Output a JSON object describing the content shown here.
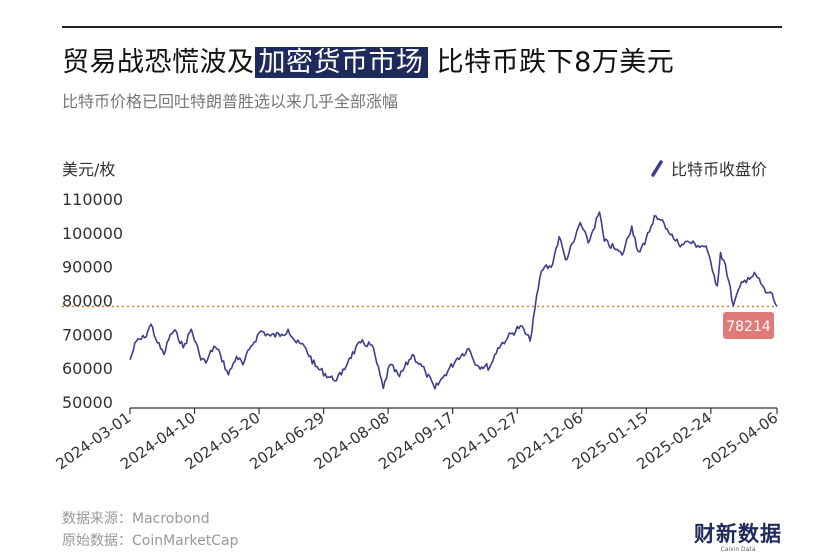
{
  "header": {
    "title_pre": "贸易战恐慌波及",
    "title_highlight": "加密货币市场",
    "title_post": " 比特币跌下8万美元",
    "subtitle": "比特币价格已回吐特朗普胜选以来几乎全部涨幅"
  },
  "footer": {
    "source": "数据来源：Macrobond",
    "raw_source": "原始数据：CoinMarketCap"
  },
  "logo": {
    "cn": "财新数据",
    "en": "Caixin Data"
  },
  "colors": {
    "line": "#3d3e8c",
    "reference": "#e0782a",
    "callout": "#e07a78",
    "axis": "#333333"
  },
  "chart_data": {
    "type": "line",
    "ylabel": "美元/枚",
    "ylim": [
      50000,
      115000
    ],
    "yticks": [
      50000,
      60000,
      70000,
      80000,
      90000,
      100000,
      110000
    ],
    "xlim": [
      "2024-03-01",
      "2025-04-06"
    ],
    "xticks": [
      "2024-03-01",
      "2024-04-10",
      "2024-05-20",
      "2024-06-29",
      "2024-08-08",
      "2024-09-17",
      "2024-10-27",
      "2024-12-06",
      "2025-01-15",
      "2025-02-24",
      "2025-04-06"
    ],
    "grid": false,
    "legend_position": "top-right",
    "reference_line": {
      "value": 78214,
      "label": "78214"
    },
    "series": [
      {
        "name": "比特币收盘价",
        "points": [
          [
            "2024-03-01",
            62500
          ],
          [
            "2024-03-05",
            68000
          ],
          [
            "2024-03-10",
            69000
          ],
          [
            "2024-03-14",
            73000
          ],
          [
            "2024-03-18",
            67500
          ],
          [
            "2024-03-22",
            64000
          ],
          [
            "2024-03-26",
            70000
          ],
          [
            "2024-03-30",
            70500
          ],
          [
            "2024-04-03",
            66000
          ],
          [
            "2024-04-08",
            71500
          ],
          [
            "2024-04-13",
            64000
          ],
          [
            "2024-04-17",
            61500
          ],
          [
            "2024-04-22",
            66500
          ],
          [
            "2024-04-26",
            64000
          ],
          [
            "2024-05-01",
            58000
          ],
          [
            "2024-05-06",
            63500
          ],
          [
            "2024-05-10",
            61000
          ],
          [
            "2024-05-15",
            66500
          ],
          [
            "2024-05-21",
            71000
          ],
          [
            "2024-05-27",
            69500
          ],
          [
            "2024-06-03",
            70000
          ],
          [
            "2024-06-07",
            71500
          ],
          [
            "2024-06-12",
            67500
          ],
          [
            "2024-06-17",
            66500
          ],
          [
            "2024-06-24",
            60500
          ],
          [
            "2024-07-05",
            56500
          ],
          [
            "2024-07-10",
            58000
          ],
          [
            "2024-07-15",
            63000
          ],
          [
            "2024-07-22",
            67500
          ],
          [
            "2024-07-29",
            66800
          ],
          [
            "2024-08-05",
            54000
          ],
          [
            "2024-08-09",
            61000
          ],
          [
            "2024-08-15",
            57500
          ],
          [
            "2024-08-23",
            64000
          ],
          [
            "2024-08-31",
            59000
          ],
          [
            "2024-09-06",
            53900
          ],
          [
            "2024-09-12",
            58000
          ],
          [
            "2024-09-20",
            63000
          ],
          [
            "2024-09-27",
            65800
          ],
          [
            "2024-10-02",
            60800
          ],
          [
            "2024-10-10",
            60300
          ],
          [
            "2024-10-15",
            66000
          ],
          [
            "2024-10-21",
            69000
          ],
          [
            "2024-10-29",
            72500
          ],
          [
            "2024-11-04",
            68000
          ],
          [
            "2024-11-06",
            75000
          ],
          [
            "2024-11-11",
            88700
          ],
          [
            "2024-11-13",
            90000
          ],
          [
            "2024-11-17",
            89800
          ],
          [
            "2024-11-22",
            98800
          ],
          [
            "2024-11-26",
            92000
          ],
          [
            "2024-12-01",
            97200
          ],
          [
            "2024-12-05",
            103000
          ],
          [
            "2024-12-10",
            97000
          ],
          [
            "2024-12-17",
            106100
          ],
          [
            "2024-12-20",
            97500
          ],
          [
            "2024-12-26",
            95500
          ],
          [
            "2024-12-31",
            93400
          ],
          [
            "2025-01-06",
            102000
          ],
          [
            "2025-01-10",
            94500
          ],
          [
            "2025-01-14",
            96500
          ],
          [
            "2025-01-20",
            105000
          ],
          [
            "2025-01-22",
            104000
          ],
          [
            "2025-01-26",
            102800
          ],
          [
            "2025-02-02",
            97600
          ],
          [
            "2025-02-06",
            96500
          ],
          [
            "2025-02-10",
            97400
          ],
          [
            "2025-02-16",
            96200
          ],
          [
            "2025-02-21",
            96100
          ],
          [
            "2025-02-25",
            88700
          ],
          [
            "2025-02-28",
            84300
          ],
          [
            "2025-03-02",
            94200
          ],
          [
            "2025-03-05",
            90600
          ],
          [
            "2025-03-10",
            78500
          ],
          [
            "2025-03-14",
            84000
          ],
          [
            "2025-03-19",
            86800
          ],
          [
            "2025-03-24",
            87500
          ],
          [
            "2025-03-30",
            82300
          ],
          [
            "2025-04-02",
            82500
          ],
          [
            "2025-04-06",
            78214
          ]
        ]
      }
    ]
  }
}
